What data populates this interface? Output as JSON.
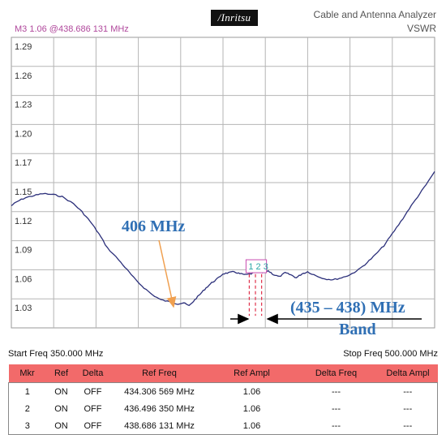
{
  "header": {
    "marker_readout": "M3 1.06 @438.686 131 MHz",
    "logo_text": "/Inritsu",
    "title_line1": "Cable and Antenna Analyzer",
    "title_line2": "VSWR"
  },
  "annotations": {
    "left_label": "406 MHz",
    "band_label_line1": "(435 – 438) MHz",
    "band_label_line2": "Band"
  },
  "chart_data": {
    "type": "line",
    "title": "",
    "xlabel": "",
    "ylabel": "VSWR",
    "xlim": [
      350,
      500
    ],
    "ylim": [
      1.01,
      1.3
    ],
    "yticks": [
      1.29,
      1.26,
      1.23,
      1.2,
      1.17,
      1.15,
      1.12,
      1.09,
      1.06,
      1.03
    ],
    "grid": true,
    "trace_color": "#2b2f7a",
    "series": [
      {
        "x": [
          350,
          352,
          355,
          358,
          361,
          365,
          368,
          372,
          375,
          378,
          381,
          384,
          388,
          391,
          394,
          397,
          400,
          403,
          406,
          409,
          411,
          413,
          415,
          417,
          419,
          421,
          423,
          425,
          427,
          429,
          431,
          433,
          435,
          437,
          439,
          441,
          443,
          445,
          447,
          449,
          451,
          453,
          455,
          458,
          461,
          464,
          467,
          470,
          473,
          476,
          479,
          482,
          485,
          488,
          491,
          494,
          497,
          500
        ],
        "values": [
          1.132,
          1.136,
          1.14,
          1.142,
          1.144,
          1.143,
          1.141,
          1.134,
          1.126,
          1.116,
          1.104,
          1.09,
          1.078,
          1.068,
          1.058,
          1.05,
          1.043,
          1.038,
          1.036,
          1.034,
          1.035,
          1.032,
          1.038,
          1.044,
          1.05,
          1.055,
          1.059,
          1.064,
          1.065,
          1.066,
          1.064,
          1.063,
          1.064,
          1.066,
          1.065,
          1.067,
          1.063,
          1.061,
          1.065,
          1.063,
          1.06,
          1.064,
          1.066,
          1.062,
          1.059,
          1.058,
          1.06,
          1.063,
          1.068,
          1.075,
          1.083,
          1.092,
          1.104,
          1.116,
          1.129,
          1.141,
          1.153,
          1.166
        ]
      }
    ],
    "markers": [
      {
        "label": "1",
        "freq": 434.306569,
        "value": 1.06,
        "color": "#c84bb0"
      },
      {
        "label": "2",
        "freq": 436.49635,
        "value": 1.06,
        "color": "#c84bb0"
      },
      {
        "label": "3",
        "freq": 438.686131,
        "value": 1.06,
        "color": "#2aa6a6"
      }
    ],
    "marker_box_labels": "1 2 3"
  },
  "freq_range": {
    "start": "Start Freq 350.000 MHz",
    "stop": "Stop Freq 500.000 MHz"
  },
  "marker_table": {
    "headers": [
      "Mkr",
      "Ref",
      "Delta",
      "Ref Freq",
      "Ref Ampl",
      "Delta Freq",
      "Delta Ampl"
    ],
    "rows": [
      [
        "1",
        "ON",
        "OFF",
        "434.306 569 MHz",
        "1.06",
        "---",
        "---"
      ],
      [
        "2",
        "ON",
        "OFF",
        "436.496 350 MHz",
        "1.06",
        "---",
        "---"
      ],
      [
        "3",
        "ON",
        "OFF",
        "438.686 131 MHz",
        "1.06",
        "---",
        "---"
      ]
    ]
  }
}
